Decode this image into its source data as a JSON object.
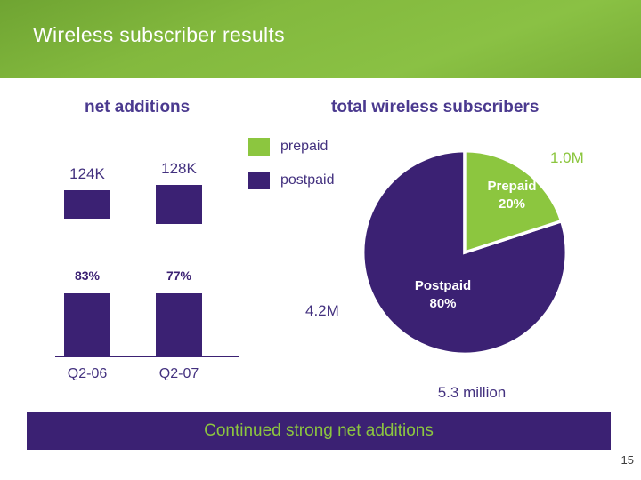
{
  "slide": {
    "title": "Wireless subscriber results",
    "banner_text": "Continued strong net additions",
    "page_number": "15"
  },
  "colors": {
    "green": "#8CC63F",
    "purple": "#3B2173",
    "heading_purple": "#4B3A8F",
    "white": "#FFFFFF"
  },
  "bar_section": {
    "heading": "net additions",
    "bars": [
      {
        "quarter": "Q2-06",
        "total_label": "124K",
        "postpaid_pct_label": "83%"
      },
      {
        "quarter": "Q2-07",
        "total_label": "128K",
        "postpaid_pct_label": "77%"
      }
    ]
  },
  "pie_section": {
    "heading": "total wireless subscribers",
    "legend": [
      {
        "label": "prepaid",
        "color": "#8CC63F"
      },
      {
        "label": "postpaid",
        "color": "#3B2173"
      }
    ],
    "slice_labels": {
      "prepaid": [
        "Prepaid",
        "20%"
      ],
      "postpaid": [
        "Postpaid",
        "80%"
      ]
    },
    "prepaid_callout": "1.0M",
    "postpaid_callout": "4.2M",
    "total_label": "5.3 million"
  },
  "chart_data": [
    {
      "type": "bar",
      "title": "net additions",
      "categories": [
        "Q2-06",
        "Q2-07"
      ],
      "values": [
        124,
        128
      ],
      "unit": "thousands",
      "bar_labels": [
        "124K",
        "128K"
      ],
      "postpaid_share_pct": [
        83,
        77
      ],
      "postpaid_share_labels": [
        "83%",
        "77%"
      ],
      "ylim": [
        0,
        140
      ],
      "grid": false
    },
    {
      "type": "pie",
      "title": "total wireless subscribers",
      "labels": [
        "prepaid",
        "postpaid"
      ],
      "values": [
        20,
        80
      ],
      "value_labels": [
        "Prepaid 20%",
        "Postpaid 80%"
      ],
      "absolute_values": [
        "1.0M",
        "4.2M"
      ],
      "total": "5.3 million",
      "colors": [
        "#8CC63F",
        "#3B2173"
      ],
      "start_angle_deg": 0,
      "direction": "clockwise",
      "legend_position": "top-center"
    }
  ]
}
